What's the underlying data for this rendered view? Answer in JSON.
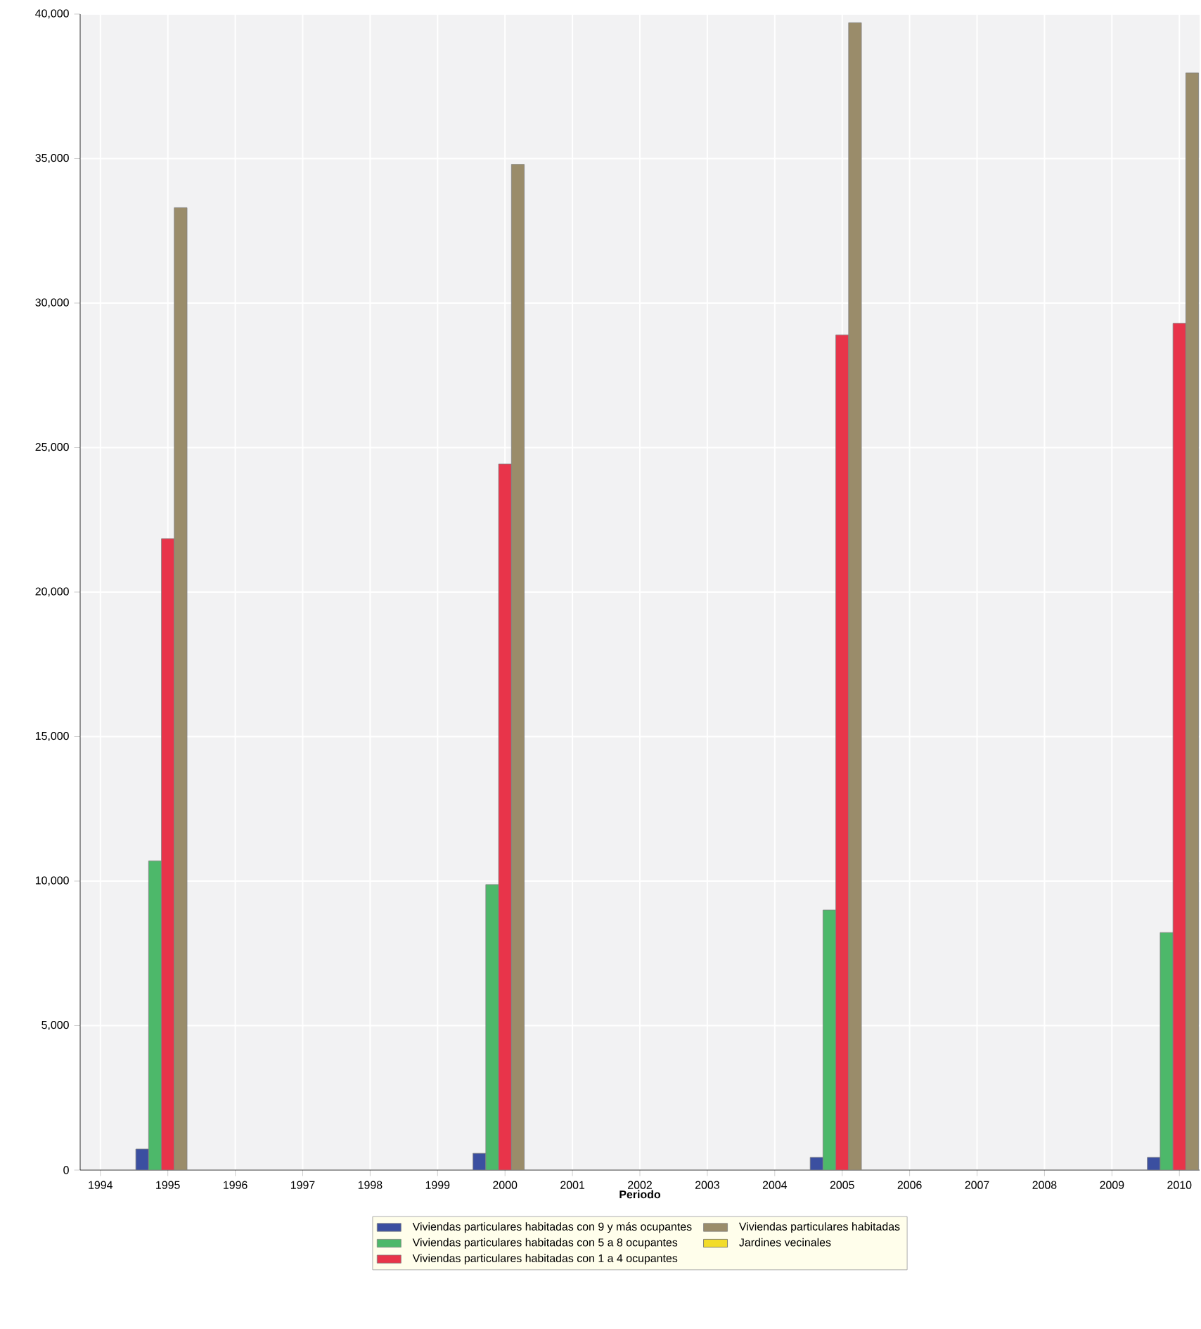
{
  "chart_data": {
    "type": "bar",
    "xlabel": "Periodo",
    "x": [
      1995,
      2000,
      2005,
      2010
    ],
    "series": [
      {
        "name": "Viviendas particulares habitadas con 9 y más ocupantes",
        "color": "#3b4fa0",
        "values": [
          730,
          580,
          440,
          440
        ]
      },
      {
        "name": "Viviendas particulares habitadas con 5 a 8 ocupantes",
        "color": "#4db86a",
        "values": [
          10700,
          9880,
          9000,
          8220
        ]
      },
      {
        "name": "Viviendas particulares habitadas con 1 a 4 ocupantes",
        "color": "#e8344a",
        "values": [
          21850,
          24430,
          28900,
          29300
        ]
      },
      {
        "name": "Viviendas particulares habitadas",
        "color": "#9a8c6a",
        "values": [
          33300,
          34800,
          39700,
          37960
        ]
      },
      {
        "name": "Jardines vecinales",
        "color": "#f2dc2a",
        "values": [
          null,
          null,
          null,
          null
        ]
      }
    ],
    "xlim": [
      1993.7,
      2010.3
    ],
    "xticks": [
      1994,
      1995,
      1996,
      1997,
      1998,
      1999,
      2000,
      2001,
      2002,
      2003,
      2004,
      2005,
      2006,
      2007,
      2008,
      2009,
      2010
    ],
    "ylim": [
      0,
      40000
    ],
    "yticks": [
      {
        "value": 0,
        "label": "0"
      },
      {
        "value": 5000,
        "label": "5,000"
      },
      {
        "value": 10000,
        "label": "10,000"
      },
      {
        "value": 15000,
        "label": "15,000"
      },
      {
        "value": 20000,
        "label": "20,000"
      },
      {
        "value": 25000,
        "label": "25,000"
      },
      {
        "value": 30000,
        "label": "30,000"
      },
      {
        "value": 35000,
        "label": "35,000"
      },
      {
        "value": 40000,
        "label": "40,000"
      }
    ],
    "grid": true,
    "legend": "bottom"
  }
}
